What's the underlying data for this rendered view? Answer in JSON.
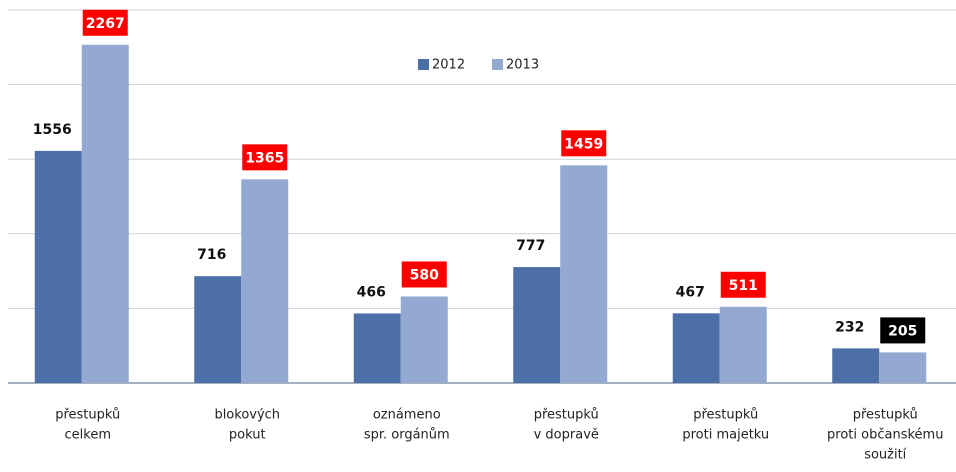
{
  "chart_data": {
    "type": "bar",
    "categories": [
      [
        "přestupků",
        "celkem"
      ],
      [
        "blokových",
        "pokut"
      ],
      [
        "oznámeno",
        "spr. orgánům"
      ],
      [
        "přestupků",
        "v dopravě"
      ],
      [
        "přestupků",
        "proti majetku"
      ],
      [
        "přestupků",
        "proti občanskému",
        "soužití"
      ]
    ],
    "series": [
      {
        "name": "2012",
        "color": "#4b6fa6",
        "values": [
          1556,
          716,
          466,
          777,
          467,
          232
        ]
      },
      {
        "name": "2013",
        "color": "#93a9d2",
        "values": [
          2267,
          1365,
          580,
          1459,
          511,
          205
        ],
        "label_backgrounds": [
          "#ff0000",
          "#ff0000",
          "#ff0000",
          "#ff0000",
          "#ff0000",
          "#000000"
        ]
      }
    ],
    "ylim": [
      0,
      2500
    ],
    "yticks": [
      0,
      500,
      1000,
      1500,
      2000,
      2500
    ],
    "grid": true,
    "legend": "top"
  }
}
